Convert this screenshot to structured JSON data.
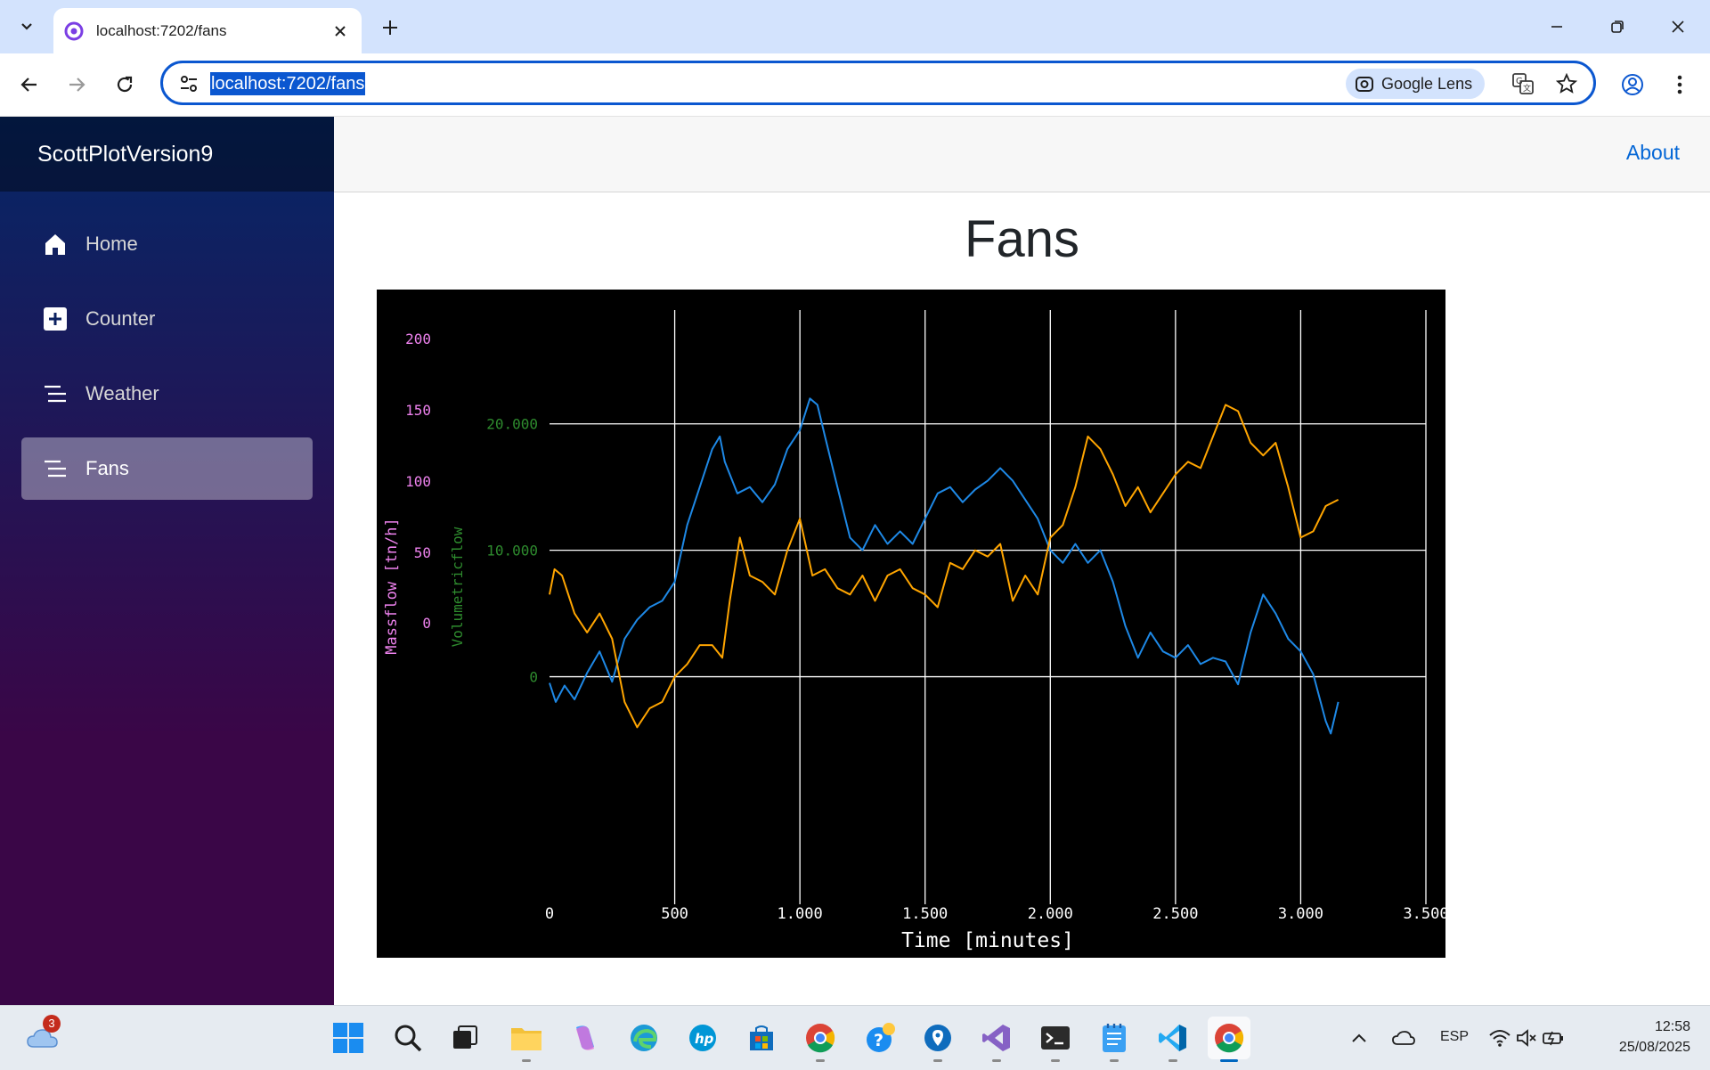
{
  "browser": {
    "tab_title": "localhost:7202/fans",
    "url": "localhost:7202/fans",
    "lens_label": "Google Lens"
  },
  "app": {
    "brand": "ScottPlotVersion9",
    "about_link": "About",
    "nav": [
      {
        "label": "Home",
        "icon": "home-icon",
        "active": false
      },
      {
        "label": "Counter",
        "icon": "plus-square-icon",
        "active": false
      },
      {
        "label": "Weather",
        "icon": "list-icon",
        "active": false
      },
      {
        "label": "Fans",
        "icon": "list-icon",
        "active": true
      }
    ],
    "page_title": "Fans"
  },
  "chart_data": {
    "type": "line",
    "title": "",
    "xlabel": "Time [minutes]",
    "ylabel_left_outer": "Massflow [tn/h]",
    "ylabel_left_inner": "Volumetricflow",
    "x_ticks": [
      "0",
      "500",
      "1.000",
      "1.500",
      "2.000",
      "2.500",
      "3.000",
      "3.500"
    ],
    "x_tick_values": [
      0,
      500,
      1000,
      1500,
      2000,
      2500,
      3000,
      3500
    ],
    "massflow_ticks": [
      "200",
      "150",
      "100",
      "50",
      "0"
    ],
    "volumetric_ticks": [
      "20.000",
      "10.000",
      "0"
    ],
    "xlim": [
      0,
      3500
    ],
    "ylim_volumetric": [
      -18000,
      29000
    ],
    "grid": true,
    "background": "#000000",
    "colors": {
      "series_blue": "#1e88e5",
      "series_orange": "#ffa500",
      "massflow_axis": "#ee82ee",
      "volumetric_axis": "#2e8b2e",
      "grid": "#ffffff"
    },
    "series": [
      {
        "color": "#1e88e5",
        "x": [
          0,
          25,
          60,
          100,
          150,
          200,
          250,
          300,
          350,
          400,
          450,
          500,
          550,
          600,
          650,
          680,
          700,
          750,
          800,
          850,
          900,
          950,
          1000,
          1040,
          1070,
          1100,
          1150,
          1200,
          1250,
          1300,
          1350,
          1400,
          1450,
          1500,
          1550,
          1600,
          1650,
          1700,
          1750,
          1800,
          1850,
          1900,
          1950,
          2000,
          2050,
          2100,
          2150,
          2200,
          2250,
          2300,
          2350,
          2400,
          2450,
          2500,
          2550,
          2600,
          2650,
          2700,
          2750,
          2800,
          2850,
          2900,
          2950,
          3000,
          3050,
          3100,
          3120,
          3150
        ],
        "y": [
          -500,
          -2000,
          -700,
          -1800,
          300,
          2000,
          -400,
          3000,
          4500,
          5500,
          6000,
          7500,
          12000,
          15000,
          18000,
          19000,
          17000,
          14500,
          15000,
          13800,
          15200,
          18000,
          19500,
          22000,
          21500,
          19000,
          15000,
          11000,
          10000,
          12000,
          10500,
          11500,
          10500,
          12500,
          14500,
          15000,
          13800,
          14800,
          15500,
          16500,
          15500,
          14000,
          12500,
          10000,
          9000,
          10500,
          9000,
          10000,
          7500,
          4000,
          1500,
          3500,
          2000,
          1500,
          2500,
          1000,
          1500,
          1200,
          -600,
          3500,
          6500,
          5000,
          3000,
          2000,
          200,
          -3500,
          -4500,
          -2000
        ]
      },
      {
        "color": "#ffa500",
        "x": [
          0,
          20,
          50,
          100,
          150,
          200,
          250,
          300,
          350,
          400,
          450,
          500,
          550,
          600,
          650,
          690,
          720,
          760,
          800,
          850,
          900,
          950,
          1000,
          1050,
          1100,
          1150,
          1200,
          1250,
          1300,
          1350,
          1400,
          1450,
          1500,
          1550,
          1600,
          1650,
          1700,
          1750,
          1800,
          1850,
          1900,
          1950,
          2000,
          2050,
          2100,
          2150,
          2200,
          2250,
          2300,
          2350,
          2400,
          2450,
          2500,
          2550,
          2600,
          2650,
          2700,
          2750,
          2800,
          2850,
          2900,
          2950,
          3000,
          3050,
          3100,
          3150
        ],
        "y": [
          6500,
          8500,
          8000,
          5000,
          3500,
          5000,
          3000,
          -2000,
          -4000,
          -2500,
          -2000,
          0,
          1000,
          2500,
          2500,
          1500,
          6000,
          11000,
          8000,
          7500,
          6500,
          10000,
          12500,
          8000,
          8500,
          7000,
          6500,
          8000,
          6000,
          8000,
          8500,
          7000,
          6500,
          5500,
          9000,
          8500,
          10000,
          9500,
          10500,
          6000,
          8000,
          6500,
          11000,
          12000,
          15000,
          19000,
          18000,
          16000,
          13500,
          15000,
          13000,
          14500,
          16000,
          17000,
          16500,
          19000,
          21500,
          21000,
          18500,
          17500,
          18500,
          15000,
          11000,
          11500,
          13500,
          14000
        ]
      }
    ]
  },
  "taskbar": {
    "weather_badge": "3",
    "lang": "ESP",
    "time": "12:58",
    "date": "25/08/2025"
  }
}
